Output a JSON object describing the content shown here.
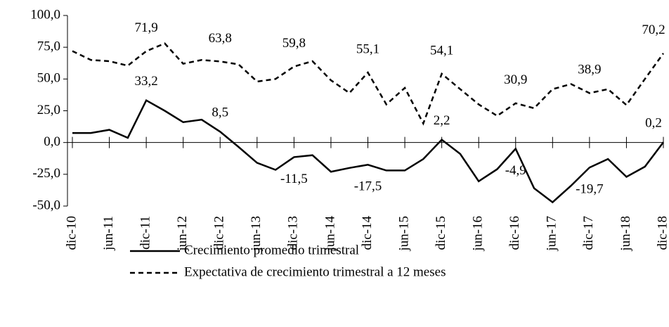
{
  "chart_data": {
    "type": "line",
    "categories": [
      "dic-10",
      null,
      "jun-11",
      null,
      "dic-11",
      null,
      "jun-12",
      null,
      "dic-12",
      null,
      "jun-13",
      null,
      "dic-13",
      null,
      "jun-14",
      null,
      "dic-14",
      null,
      "jun-15",
      null,
      "dic-15",
      null,
      "jun-16",
      null,
      "dic-16",
      null,
      "jun-17",
      null,
      "dic-17",
      null,
      "jun-18",
      null,
      "dic-18"
    ],
    "series": [
      {
        "name": "Crecimiento promedio trimestral",
        "color": "#000000",
        "style": "solid",
        "values": [
          7.5,
          7.5,
          10,
          3.7,
          33.2,
          25,
          16,
          18,
          8.5,
          -3.5,
          -16,
          -21.5,
          -11.5,
          -10,
          -23,
          -20,
          -17.5,
          -22,
          -22,
          -13,
          2.2,
          -9,
          -30.5,
          -21,
          -4.9,
          -36,
          -47,
          -34,
          -19.7,
          -13,
          -27,
          -19,
          0.2
        ],
        "value_labels": [
          null,
          null,
          null,
          null,
          "33,2",
          null,
          null,
          null,
          "8,5",
          null,
          null,
          null,
          "-11,5",
          null,
          null,
          null,
          "-17,5",
          null,
          null,
          null,
          "2,2",
          null,
          null,
          null,
          "-4,9",
          null,
          null,
          null,
          "-19,7",
          null,
          null,
          null,
          "0,2"
        ]
      },
      {
        "name": "Expectativa de crecimiento trimestral a 12 meses",
        "color": "#000000",
        "style": "dashed",
        "values": [
          72,
          65,
          64,
          60.5,
          71.9,
          78,
          62,
          65,
          63.8,
          61.5,
          48,
          50,
          59.8,
          64,
          49,
          39,
          55.1,
          30,
          43,
          15,
          54.1,
          42,
          30,
          21,
          30.9,
          27,
          42,
          46,
          38.9,
          42,
          29.5,
          50,
          70.2
        ],
        "value_labels": [
          null,
          null,
          null,
          null,
          "71,9",
          null,
          null,
          null,
          "63,8",
          null,
          null,
          null,
          "59,8",
          null,
          null,
          null,
          "55,1",
          null,
          null,
          null,
          "54,1",
          null,
          null,
          null,
          "30,9",
          null,
          null,
          null,
          "38,9",
          null,
          null,
          null,
          "70,2"
        ]
      }
    ],
    "ylim": [
      -50,
      100
    ],
    "yticks": [
      {
        "value": -50,
        "label": "-50,0"
      },
      {
        "value": -25,
        "label": "-25,0"
      },
      {
        "value": 0,
        "label": "0,0"
      },
      {
        "value": 25,
        "label": "25,0"
      },
      {
        "value": 50,
        "label": "50,0"
      },
      {
        "value": 75,
        "label": "75,0"
      },
      {
        "value": 100,
        "label": "100,0"
      }
    ],
    "legend": "bottom"
  }
}
